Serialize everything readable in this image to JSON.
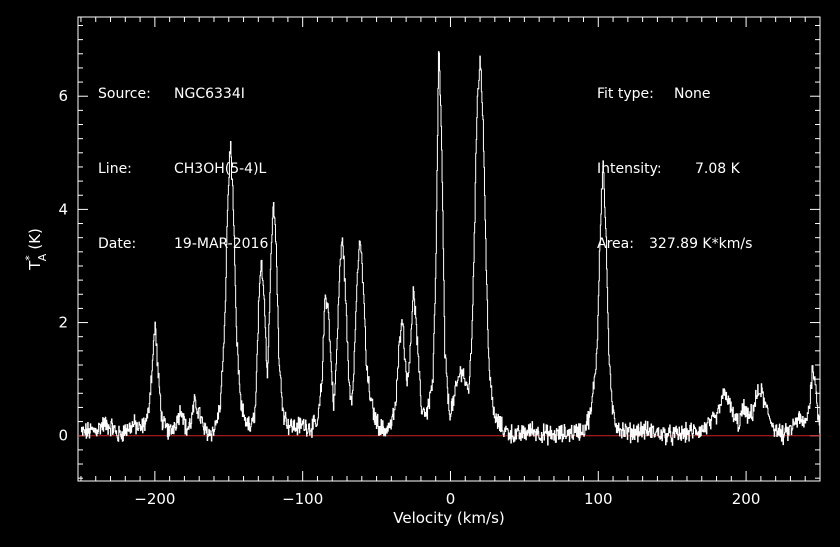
{
  "header": {
    "left": [
      {
        "label": "Source:",
        "value": "NGC6334I"
      },
      {
        "label": "Line:",
        "value": "CH3OH(5-4)L"
      },
      {
        "label": "Date:",
        "value": "19-MAR-2016"
      }
    ],
    "right": [
      {
        "label": "Fit type:",
        "value": "None"
      },
      {
        "label": "Intensity:",
        "value": "7.08 K"
      },
      {
        "label": "Area:",
        "value": "327.89 K*km/s"
      }
    ]
  },
  "colors": {
    "background": "#000000",
    "spectrum": "#ffffff",
    "baseline": "#cc2222",
    "axes": "#ffffff"
  },
  "chart_data": {
    "type": "line",
    "xlabel": "Velocity (km/s)",
    "ylabel": "T",
    "ylabel_sub": "A",
    "ylabel_sup": "*",
    "ylabel_unit": "(K)",
    "xlim": [
      -252,
      250
    ],
    "ylim": [
      -0.8,
      7.4
    ],
    "xticks": [
      -200,
      -100,
      0,
      100,
      200
    ],
    "xtick_labels": [
      "−200",
      "−100",
      "0",
      "100",
      "200"
    ],
    "yticks": [
      0,
      2,
      4,
      6
    ],
    "ytick_labels": [
      "0",
      "2",
      "4",
      "6"
    ],
    "baseline": 0,
    "series": [
      {
        "x": [
          -250,
          -240,
          -235,
          -229,
          -225,
          -220,
          -214,
          -210,
          -205,
          -202,
          -200,
          -198,
          -195,
          -190,
          -185,
          -182,
          -179,
          -176,
          -173,
          -170,
          -167,
          -163,
          -160,
          -156,
          -153,
          -151,
          -149,
          -147,
          -145,
          -142,
          -139,
          -135,
          -132,
          -130,
          -128,
          -126,
          -124,
          -122,
          -120,
          -118,
          -116,
          -113,
          -110,
          -105,
          -100,
          -95,
          -90,
          -87,
          -85,
          -83,
          -81,
          -79,
          -77,
          -75,
          -73,
          -71,
          -69,
          -67,
          -65,
          -63,
          -61,
          -59,
          -57,
          -54,
          -51,
          -48,
          -45,
          -40,
          -37,
          -35,
          -33,
          -31,
          -29,
          -27,
          -25,
          -23,
          -20,
          -16,
          -12,
          -10,
          -8,
          -6,
          -4,
          -1,
          2,
          5,
          8,
          10,
          12,
          14,
          16,
          18,
          20,
          22,
          24,
          26,
          28,
          30,
          33,
          36,
          40,
          45,
          50,
          55,
          60,
          70,
          80,
          90,
          95,
          99,
          101,
          103,
          105,
          107,
          109,
          112,
          116,
          120,
          130,
          140,
          150,
          160,
          170,
          175,
          180,
          183,
          186,
          189,
          192,
          195,
          198,
          201,
          204,
          207,
          210,
          213,
          216,
          220,
          225,
          230,
          235,
          240,
          243,
          245,
          247,
          249,
          250
        ],
        "y": [
          0.05,
          0.1,
          0.2,
          0.15,
          0.0,
          0.1,
          0.2,
          0.1,
          0.3,
          1.2,
          2.0,
          1.1,
          0.2,
          0.05,
          0.3,
          0.5,
          0.1,
          0.2,
          0.6,
          0.4,
          0.1,
          0.05,
          0.1,
          0.5,
          1.8,
          4.0,
          5.2,
          4.0,
          1.8,
          0.5,
          0.3,
          0.1,
          0.5,
          2.2,
          3.1,
          2.4,
          1.0,
          2.8,
          4.3,
          3.3,
          1.2,
          0.4,
          0.2,
          0.15,
          0.2,
          0.15,
          0.2,
          1.0,
          2.5,
          2.3,
          1.3,
          0.5,
          1.5,
          3.0,
          3.5,
          2.4,
          1.0,
          0.6,
          1.5,
          3.0,
          3.4,
          2.6,
          1.2,
          0.6,
          0.3,
          0.15,
          0.1,
          0.2,
          0.6,
          1.5,
          2.2,
          1.4,
          0.9,
          1.8,
          2.6,
          1.8,
          0.5,
          0.4,
          1.0,
          3.0,
          7.0,
          5.0,
          1.5,
          0.4,
          0.6,
          1.0,
          1.2,
          0.9,
          0.8,
          1.5,
          3.5,
          6.0,
          6.7,
          5.5,
          3.0,
          1.2,
          0.6,
          0.3,
          0.2,
          0.1,
          0.05,
          0.0,
          0.05,
          0.1,
          0.05,
          0.0,
          0.05,
          0.1,
          0.4,
          1.5,
          3.5,
          4.9,
          3.6,
          1.5,
          0.5,
          0.2,
          0.1,
          0.05,
          0.1,
          0.05,
          0.0,
          0.05,
          0.1,
          0.2,
          0.3,
          0.6,
          0.8,
          0.5,
          0.3,
          0.2,
          0.5,
          0.3,
          0.4,
          0.7,
          0.8,
          0.5,
          0.3,
          0.1,
          0.0,
          0.1,
          0.3,
          0.2,
          0.6,
          1.3,
          0.8,
          0.3,
          0.1
        ]
      }
    ]
  }
}
